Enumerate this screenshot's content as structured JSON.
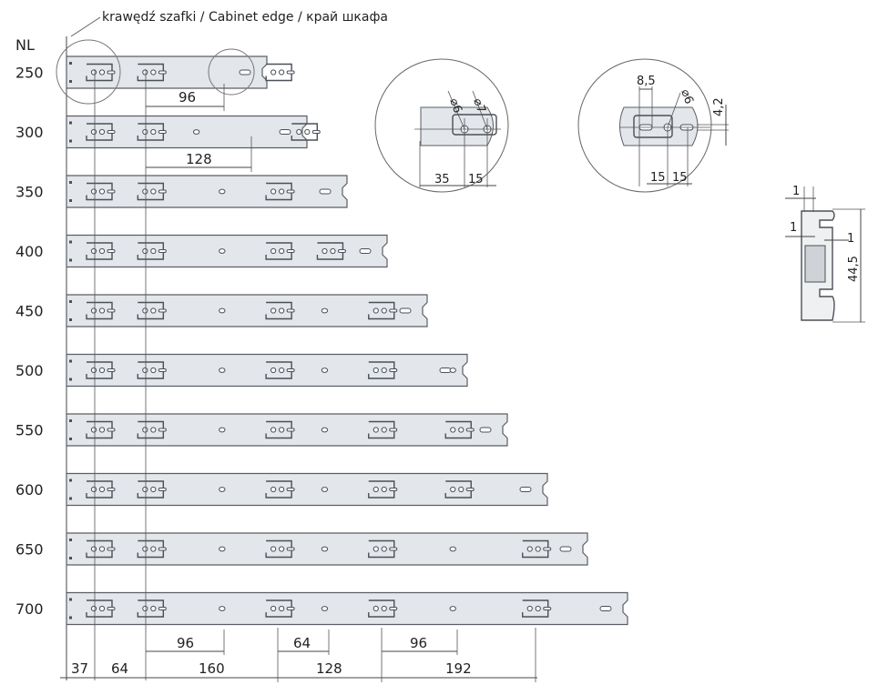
{
  "header": {
    "edge_label": "krawędź szafki / Cabinet edge / край шкафа",
    "nl_heading": "NL"
  },
  "rails": [
    {
      "nl": "250",
      "length": 250,
      "lugs": [
        0,
        64,
        224
      ],
      "extra_holes": []
    },
    {
      "nl": "300",
      "length": 300,
      "lugs": [
        0,
        64,
        256
      ],
      "extra_holes": [
        128
      ]
    },
    {
      "nl": "350",
      "length": 350,
      "lugs": [
        0,
        64,
        224
      ],
      "extra_holes": [
        160
      ]
    },
    {
      "nl": "400",
      "length": 400,
      "lugs": [
        0,
        64,
        224,
        288
      ],
      "extra_holes": [
        160
      ]
    },
    {
      "nl": "450",
      "length": 450,
      "lugs": [
        0,
        64,
        224,
        352
      ],
      "extra_holes": [
        160,
        288
      ]
    },
    {
      "nl": "500",
      "length": 500,
      "lugs": [
        0,
        64,
        224,
        352
      ],
      "extra_holes": [
        160,
        288,
        448
      ]
    },
    {
      "nl": "550",
      "length": 550,
      "lugs": [
        0,
        64,
        224,
        352,
        448
      ],
      "extra_holes": [
        160,
        288
      ]
    },
    {
      "nl": "600",
      "length": 600,
      "lugs": [
        0,
        64,
        224,
        352,
        448
      ],
      "extra_holes": [
        160,
        288
      ]
    },
    {
      "nl": "650",
      "length": 650,
      "lugs": [
        0,
        64,
        224,
        352,
        544
      ],
      "extra_holes": [
        160,
        288,
        448
      ]
    },
    {
      "nl": "700",
      "length": 700,
      "lugs": [
        0,
        64,
        224,
        352,
        544
      ],
      "extra_holes": [
        160,
        288,
        448
      ]
    }
  ],
  "dimensions": {
    "row1_96": "96",
    "row2_128": "128",
    "bottom_96_a": "96",
    "bottom_64": "64",
    "bottom_96_b": "96",
    "chain": [
      "37",
      "64",
      "160",
      "128",
      "192"
    ]
  },
  "detail_left": {
    "d1": "⌀6",
    "d2": "⌀7",
    "a": "35",
    "b": "15"
  },
  "detail_right": {
    "w": "8,5",
    "d": "⌀6",
    "h": "4,2",
    "a": "15",
    "b": "15"
  },
  "profile": {
    "t_top": "1",
    "t_left": "1",
    "t_right": "1",
    "height": "44,5"
  }
}
